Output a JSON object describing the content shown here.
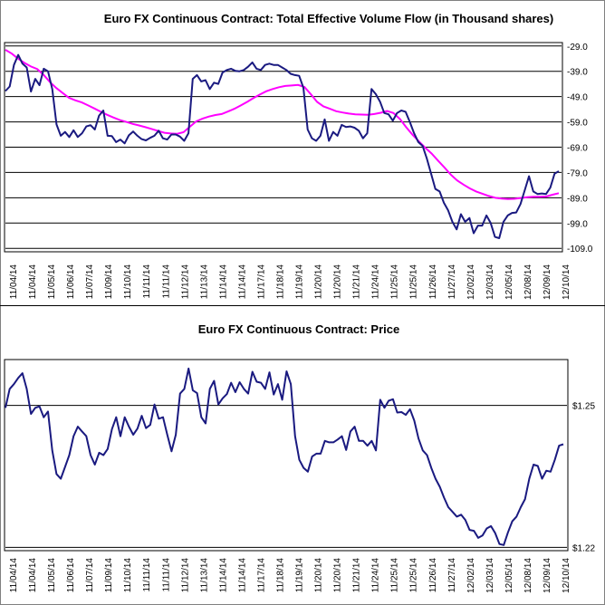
{
  "colors": {
    "volume_line": "#1a1a80",
    "moving_average": "#ff00ff",
    "price_line": "#1a1a80",
    "grid": "#000000",
    "background": "#ffffff"
  },
  "chart_data": [
    {
      "type": "line",
      "title": "Euro FX Continuous Contract: Total Effective Volume Flow (in Thousand shares)",
      "y_ticks": [
        "-29.0",
        "-39.0",
        "-49.0",
        "-59.0",
        "-69.0",
        "-79.0",
        "-89.0",
        "-99.0",
        "-109.0"
      ],
      "y_tick_values": [
        -29,
        -39,
        -49,
        -59,
        -69,
        -79,
        -89,
        -99,
        -109
      ],
      "ylim": [
        -110,
        -28
      ],
      "grid": "horizontal",
      "x_labels": [
        "11/04/14",
        "11/04/14",
        "11/05/14",
        "11/06/14",
        "11/07/14",
        "11/09/14",
        "11/10/14",
        "11/11/14",
        "11/11/14",
        "11/12/14",
        "11/13/14",
        "11/14/14",
        "11/14/14",
        "11/17/14",
        "11/18/14",
        "11/19/14",
        "11/20/14",
        "11/20/14",
        "11/21/14",
        "11/24/14",
        "11/25/14",
        "11/25/14",
        "11/26/14",
        "11/27/14",
        "12/02/14",
        "12/03/14",
        "12/05/14",
        "12/08/14",
        "12/09/14",
        "12/10/14"
      ],
      "series": [
        {
          "values": [
            -46.8,
            -45,
            -36.5,
            -32.5,
            -36,
            -37.5,
            -47,
            -42,
            -44.5,
            -38,
            -39,
            -46,
            -60,
            -64.5,
            -63,
            -65,
            -62.3,
            -65,
            -63.5,
            -60.8,
            -60.3,
            -62,
            -56.5,
            -54.5,
            -64.5,
            -64.6,
            -67,
            -66,
            -67.5,
            -64.3,
            -62.8,
            -64.5,
            -65.8,
            -66.3,
            -65.3,
            -64.5,
            -62.5,
            -65.5,
            -66,
            -64,
            -64,
            -64.8,
            -66.5,
            -63.5,
            -42,
            -40.5,
            -43,
            -42.5,
            -46,
            -43.5,
            -44,
            -39.5,
            -38.5,
            -38,
            -38.8,
            -39,
            -38.5,
            -37.2,
            -35.5,
            -38,
            -38.5,
            -36.5,
            -36,
            -36.5,
            -36.5,
            -37.5,
            -38.5,
            -40,
            -40.5,
            -40.8,
            -45.5,
            -62,
            -65.5,
            -66.5,
            -64.5,
            -58,
            -66.5,
            -63,
            -64.5,
            -60.2,
            -61,
            -60.8,
            -61.3,
            -62.5,
            -65.5,
            -63.5,
            -46,
            -48,
            -51,
            -55.5,
            -56,
            -58.5,
            -55.5,
            -54.5,
            -55,
            -59,
            -63.5,
            -67,
            -68.5,
            -73.5,
            -79.5,
            -85.5,
            -86.5,
            -91,
            -94,
            -98.5,
            -101.5,
            -95.5,
            -98.5,
            -97,
            -103,
            -100,
            -100,
            -96,
            -99,
            -104.5,
            -105,
            -98.5,
            -96,
            -95,
            -94.8,
            -91.5,
            -86,
            -80.5,
            -86.5,
            -87.5,
            -87.3,
            -87.5,
            -85,
            -79.5,
            -78.5
          ]
        },
        {
          "values": [
            -30.5,
            -32,
            -34,
            -35.7,
            -37.1,
            -38.1,
            -40.4,
            -43.3,
            -45.6,
            -47.6,
            -49.5,
            -50.5,
            -51.3,
            -52.5,
            -53.7,
            -55,
            -56.2,
            -57.3,
            -58.3,
            -59,
            -59.8,
            -60.4,
            -61.1,
            -61.8,
            -62.6,
            -63.3,
            -63.6,
            -63.7,
            -63.1,
            -60.9,
            -58.8,
            -57.7,
            -56.9,
            -56.3,
            -55.9,
            -54.9,
            -53.8,
            -52.5,
            -51.1,
            -49.6,
            -48.2,
            -46.9,
            -46,
            -45.3,
            -44.8,
            -44.6,
            -44.4,
            -45.2,
            -48,
            -51.1,
            -52.9,
            -53.8,
            -54.8,
            -55.3,
            -55.7,
            -56,
            -56.1,
            -56.2,
            -55.9,
            -55.4,
            -54.7,
            -55.5,
            -57.8,
            -61.1,
            -64.1,
            -66.7,
            -69.2,
            -71.5,
            -74.3,
            -77,
            -79.8,
            -82.1,
            -83.8,
            -85.3,
            -86.5,
            -87.4,
            -88.3,
            -89,
            -89.3,
            -89.5,
            -89.4,
            -89.1,
            -88.8,
            -88.6,
            -88.6,
            -88.5,
            -87.8,
            -87.2
          ]
        }
      ]
    },
    {
      "type": "line",
      "title": "Euro FX Continuous Contract: Price",
      "y_ticks": [
        "$1.25",
        "$1.22"
      ],
      "y_tick_values": [
        1.25,
        1.22
      ],
      "ylim": [
        1.2195,
        1.2595
      ],
      "grid": "horizontal",
      "x_labels": [
        "11/04/14",
        "11/04/14",
        "11/05/14",
        "11/06/14",
        "11/07/14",
        "11/09/14",
        "11/10/14",
        "11/11/14",
        "11/11/14",
        "11/12/14",
        "11/13/14",
        "11/14/14",
        "11/14/14",
        "11/17/14",
        "11/18/14",
        "11/19/14",
        "11/20/14",
        "11/20/14",
        "11/21/14",
        "11/24/14",
        "11/25/14",
        "11/25/14",
        "11/26/14",
        "11/27/14",
        "12/02/14",
        "12/03/14",
        "12/05/14",
        "12/08/14",
        "12/09/14",
        "12/10/14"
      ],
      "series": [
        {
          "values": [
            1.2495,
            1.2535,
            1.2545,
            1.2558,
            1.2568,
            1.2535,
            1.2482,
            1.2495,
            1.2498,
            1.2475,
            1.2487,
            1.2405,
            1.2355,
            1.2345,
            1.237,
            1.2395,
            1.2435,
            1.2455,
            1.2445,
            1.2435,
            1.2395,
            1.2375,
            1.24,
            1.2395,
            1.2408,
            1.245,
            1.2475,
            1.2435,
            1.2475,
            1.2455,
            1.2438,
            1.2451,
            1.2478,
            1.2452,
            1.2459,
            1.2502,
            1.2472,
            1.2475,
            1.2438,
            1.2403,
            1.2438,
            1.2525,
            1.2535,
            1.2578,
            1.2532,
            1.2526,
            1.2475,
            1.2462,
            1.2535,
            1.2552,
            1.2502,
            1.2515,
            1.2524,
            1.2548,
            1.2528,
            1.2549,
            1.2535,
            1.2525,
            1.2571,
            1.255,
            1.2548,
            1.2535,
            1.257,
            1.2523,
            1.2545,
            1.2512,
            1.2572,
            1.2545,
            1.2435,
            1.2385,
            1.2368,
            1.236,
            1.2392,
            1.2398,
            1.2398,
            1.2425,
            1.2422,
            1.2422,
            1.2428,
            1.2435,
            1.2406,
            1.2445,
            1.2455,
            1.2425,
            1.2425,
            1.2415,
            1.2425,
            1.2405,
            1.2512,
            1.2495,
            1.251,
            1.2513,
            1.2485,
            1.2486,
            1.248,
            1.2492,
            1.2468,
            1.243,
            1.2405,
            1.2395,
            1.2368,
            1.2345,
            1.2328,
            1.2305,
            1.2285,
            1.2275,
            1.2265,
            1.2269,
            1.2258,
            1.2237,
            1.2235,
            1.222,
            1.2225,
            1.224,
            1.2245,
            1.223,
            1.2207,
            1.2205,
            1.2232,
            1.2255,
            1.2265,
            1.2285,
            1.2302,
            1.2345,
            1.2375,
            1.2372,
            1.2345,
            1.2362,
            1.236,
            1.2385,
            1.2415,
            1.2418
          ]
        }
      ]
    }
  ]
}
